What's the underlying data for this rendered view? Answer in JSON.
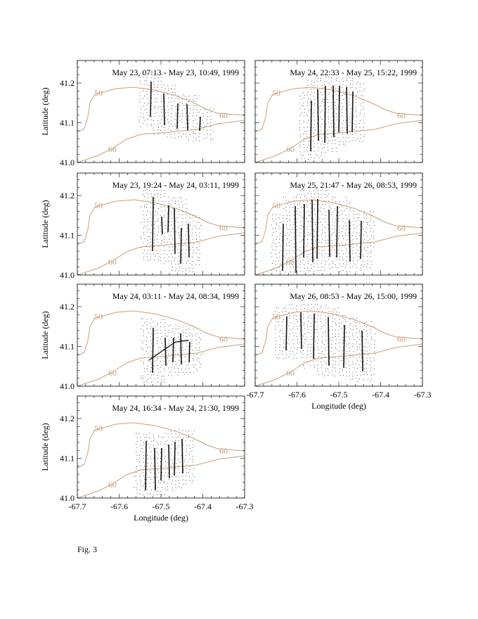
{
  "figure": {
    "caption": "Fig. 3",
    "x_label": "Longitude (deg)",
    "y_label": "Latitude (deg)",
    "x_ticks": [
      "-67.7",
      "-67.6",
      "-67.5",
      "-67.4",
      "-67.3"
    ],
    "y_ticks": [
      "41.0",
      "41.1",
      "41.2"
    ],
    "contour_labels": [
      "50",
      "60",
      "60"
    ],
    "panels": [
      {
        "title": "May 23, 07:13 - May 23, 10:49, 1999"
      },
      {
        "title": "May 23, 19:24 - May 24, 03:11, 1999"
      },
      {
        "title": "May 24, 03:11 - May 24, 08:34, 1999"
      },
      {
        "title": "May 24, 16:34 - May 24, 21:30, 1999"
      },
      {
        "title": "May 24, 22:33 - May 25, 15:22, 1999"
      },
      {
        "title": "May 25, 21:47 - May 26, 08:53, 1999"
      },
      {
        "title": "May 26, 08:53 - May 26, 15:00, 1999"
      }
    ]
  }
}
